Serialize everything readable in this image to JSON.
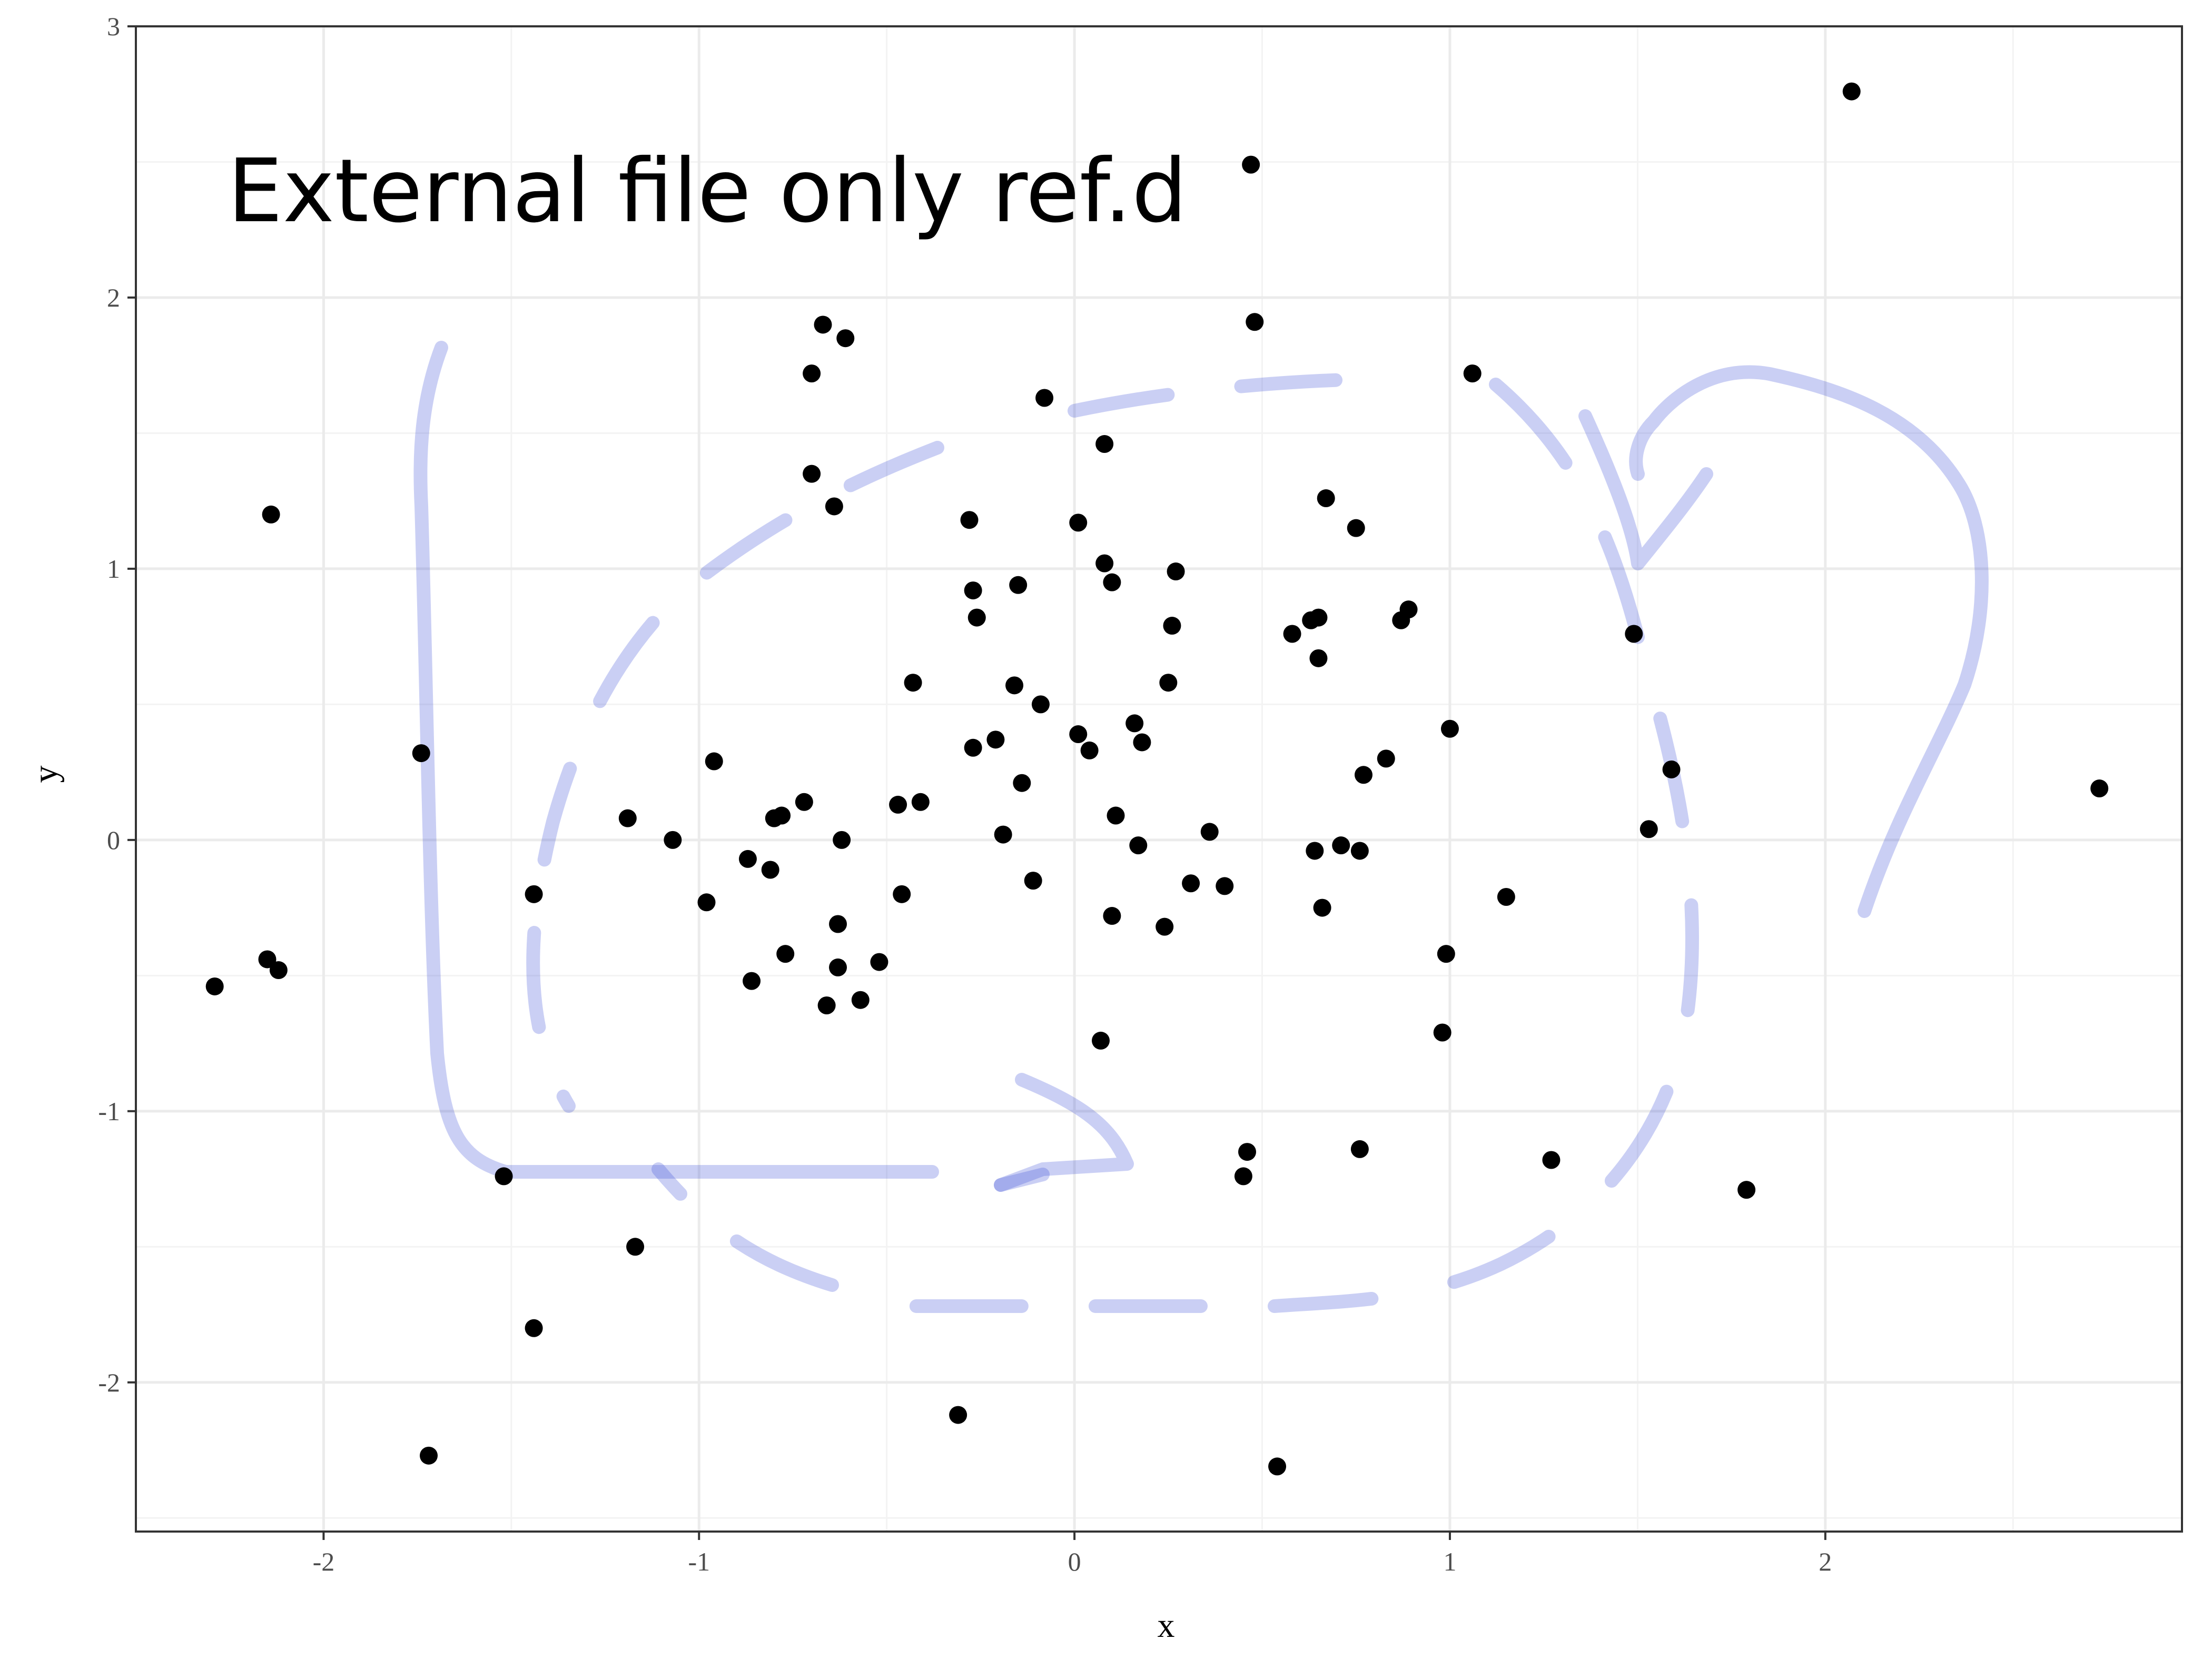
{
  "chart_data": {
    "type": "scatter",
    "title": "",
    "xlabel": "x",
    "ylabel": "y",
    "annotation": "External file only ref.d",
    "xlim": [
      -2.5,
      2.95
    ],
    "ylim": [
      -2.55,
      3.0
    ],
    "x_ticks": [
      -2,
      -1,
      0,
      1,
      2
    ],
    "x_tick_labels": [
      "-2",
      "-1",
      "0",
      "1",
      "2"
    ],
    "y_ticks": [
      -2,
      -1,
      0,
      1,
      2,
      3
    ],
    "y_tick_labels": [
      "-2",
      "-1",
      "0",
      "1",
      "2",
      "3"
    ],
    "grid": true,
    "point_color": "#000000",
    "overlay_stroke_color": "#3f51d6",
    "points": [
      [
        -2.29,
        -0.54
      ],
      [
        -2.15,
        -0.44
      ],
      [
        -2.12,
        -0.48
      ],
      [
        -2.14,
        1.2
      ],
      [
        -1.74,
        0.32
      ],
      [
        -1.72,
        -2.27
      ],
      [
        -1.52,
        -1.24
      ],
      [
        -1.44,
        -0.2
      ],
      [
        -1.44,
        -1.8
      ],
      [
        -1.17,
        -1.5
      ],
      [
        -1.19,
        0.08
      ],
      [
        -1.07,
        0.0
      ],
      [
        -0.98,
        -0.23
      ],
      [
        -0.96,
        0.29
      ],
      [
        -0.87,
        -0.07
      ],
      [
        -0.86,
        -0.52
      ],
      [
        -0.81,
        -0.11
      ],
      [
        -0.8,
        0.08
      ],
      [
        -0.78,
        0.09
      ],
      [
        -0.77,
        -0.42
      ],
      [
        -0.72,
        0.14
      ],
      [
        -0.7,
        1.72
      ],
      [
        -0.7,
        1.35
      ],
      [
        -0.67,
        1.9
      ],
      [
        -0.66,
        -0.61
      ],
      [
        -0.64,
        1.23
      ],
      [
        -0.63,
        -0.31
      ],
      [
        -0.63,
        -0.47
      ],
      [
        -0.62,
        0.0
      ],
      [
        -0.61,
        1.85
      ],
      [
        -0.57,
        -0.59
      ],
      [
        -0.52,
        -0.45
      ],
      [
        -0.47,
        0.13
      ],
      [
        -0.46,
        -0.2
      ],
      [
        -0.43,
        0.58
      ],
      [
        -0.41,
        0.14
      ],
      [
        -0.31,
        -2.12
      ],
      [
        -0.28,
        1.18
      ],
      [
        -0.27,
        0.34
      ],
      [
        -0.27,
        0.92
      ],
      [
        -0.26,
        0.82
      ],
      [
        -0.21,
        0.37
      ],
      [
        -0.19,
        0.02
      ],
      [
        -0.16,
        0.57
      ],
      [
        -0.15,
        0.94
      ],
      [
        -0.14,
        0.21
      ],
      [
        -0.11,
        -0.15
      ],
      [
        -0.09,
        0.5
      ],
      [
        -0.08,
        1.63
      ],
      [
        0.01,
        1.17
      ],
      [
        0.01,
        0.39
      ],
      [
        0.04,
        0.33
      ],
      [
        0.07,
        -0.74
      ],
      [
        0.08,
        1.46
      ],
      [
        0.08,
        1.02
      ],
      [
        0.1,
        -0.28
      ],
      [
        0.1,
        0.95
      ],
      [
        0.11,
        0.09
      ],
      [
        0.16,
        0.43
      ],
      [
        0.17,
        -0.02
      ],
      [
        0.18,
        0.36
      ],
      [
        0.24,
        -0.32
      ],
      [
        0.25,
        0.58
      ],
      [
        0.26,
        0.79
      ],
      [
        0.27,
        0.99
      ],
      [
        0.31,
        -0.16
      ],
      [
        0.36,
        0.03
      ],
      [
        0.4,
        -0.17
      ],
      [
        0.45,
        -1.24
      ],
      [
        0.46,
        -1.15
      ],
      [
        0.47,
        2.49
      ],
      [
        0.48,
        1.91
      ],
      [
        0.54,
        -2.31
      ],
      [
        0.58,
        0.76
      ],
      [
        0.63,
        0.81
      ],
      [
        0.64,
        -0.04
      ],
      [
        0.65,
        0.82
      ],
      [
        0.65,
        0.67
      ],
      [
        0.66,
        -0.25
      ],
      [
        0.67,
        1.26
      ],
      [
        0.71,
        -0.02
      ],
      [
        0.75,
        1.15
      ],
      [
        0.76,
        -0.04
      ],
      [
        0.76,
        -1.14
      ],
      [
        0.77,
        0.24
      ],
      [
        0.83,
        0.3
      ],
      [
        0.87,
        0.81
      ],
      [
        0.89,
        0.85
      ],
      [
        0.98,
        -0.71
      ],
      [
        0.99,
        -0.42
      ],
      [
        1.0,
        0.41
      ],
      [
        1.06,
        1.72
      ],
      [
        1.15,
        -0.21
      ],
      [
        1.27,
        -1.18
      ],
      [
        1.49,
        0.76
      ],
      [
        1.53,
        0.04
      ],
      [
        1.59,
        0.26
      ],
      [
        1.79,
        -1.29
      ],
      [
        2.07,
        2.76
      ],
      [
        2.73,
        0.19
      ]
    ]
  }
}
